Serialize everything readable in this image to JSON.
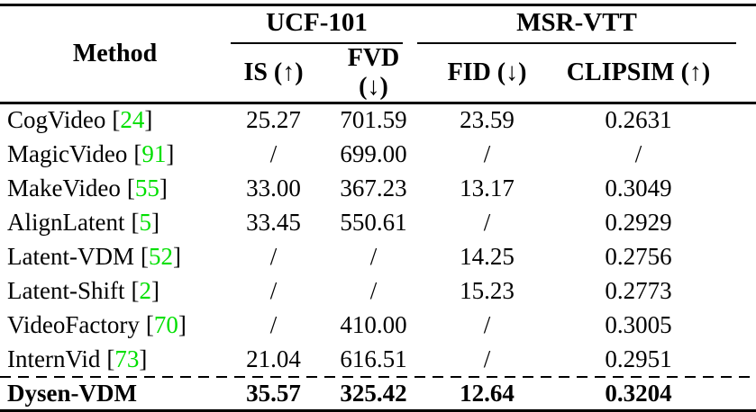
{
  "colors": {
    "background": "#ffffff",
    "text": "#000000",
    "rule": "#000000",
    "citation_green": "#00DF00"
  },
  "table": {
    "method_header": "Method",
    "group_headers": [
      {
        "label": "UCF-101"
      },
      {
        "label": "MSR-VTT"
      }
    ],
    "sub_headers": [
      "IS (↑)",
      "FVD (↓)",
      "FID (↓)",
      "CLIPSIM (↑)"
    ],
    "bracket_open": "[",
    "bracket_close": "]",
    "rows": [
      {
        "method": "CogVideo",
        "cite": "24",
        "is": "25.27",
        "fvd": "701.59",
        "fid": "23.59",
        "clipsim": "0.2631"
      },
      {
        "method": "MagicVideo",
        "cite": "91",
        "is": "/",
        "fvd": "699.00",
        "fid": "/",
        "clipsim": "/"
      },
      {
        "method": "MakeVideo",
        "cite": "55",
        "is": "33.00",
        "fvd": "367.23",
        "fid": "13.17",
        "clipsim": "0.3049"
      },
      {
        "method": "AlignLatent",
        "cite": "5",
        "is": "33.45",
        "fvd": "550.61",
        "fid": "/",
        "clipsim": "0.2929"
      },
      {
        "method": "Latent-VDM",
        "cite": "52",
        "is": "/",
        "fvd": "/",
        "fid": "14.25",
        "clipsim": "0.2756"
      },
      {
        "method": "Latent-Shift",
        "cite": "2",
        "is": "/",
        "fvd": "/",
        "fid": "15.23",
        "clipsim": "0.2773"
      },
      {
        "method": "VideoFactory",
        "cite": "70",
        "is": "/",
        "fvd": "410.00",
        "fid": "/",
        "clipsim": "0.3005"
      },
      {
        "method": "InternVid",
        "cite": "73",
        "is": "21.04",
        "fvd": "616.51",
        "fid": "/",
        "clipsim": "0.2951"
      }
    ],
    "highlight_row": {
      "method": "Dysen-VDM",
      "is": "35.57",
      "fvd": "325.42",
      "fid": "12.64",
      "clipsim": "0.3204"
    }
  }
}
